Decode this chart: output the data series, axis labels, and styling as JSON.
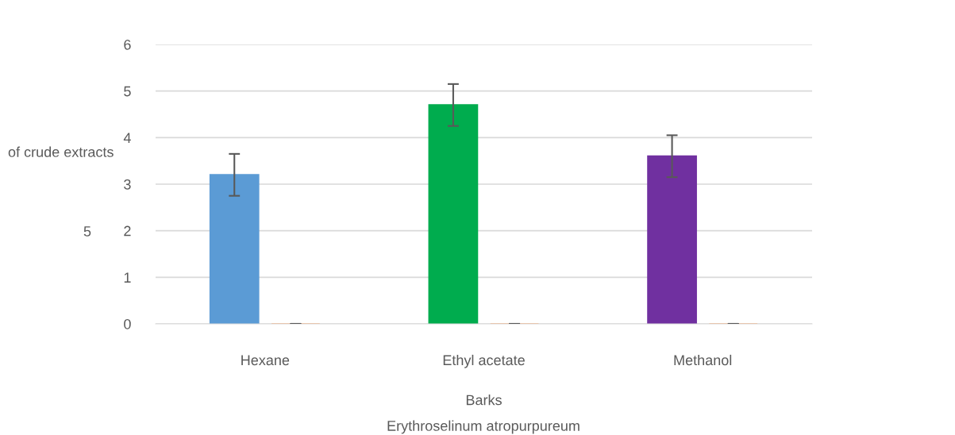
{
  "chart_data": {
    "type": "bar",
    "ylabel": "of crude extracts",
    "xlabel": "Barks",
    "categories": [
      "Hexane",
      "Ethyl acetate",
      "Methanol"
    ],
    "series": [
      {
        "colors": [
          "#5b9bd5",
          "#00ac4e",
          "#7030a0"
        ],
        "values": [
          3.2,
          4.7,
          3.6
        ],
        "errors": [
          0.45,
          0.45,
          0.45
        ]
      },
      {
        "color": "#f4b183",
        "values": [
          0,
          0,
          0
        ],
        "errors": [
          0,
          0,
          0
        ]
      }
    ],
    "ylim": [
      0,
      6
    ],
    "yticks": [
      0,
      1,
      2,
      3,
      4,
      5,
      6
    ],
    "grid": "y",
    "legend": false,
    "annotations": [
      "5",
      "Erythroselinum atropurpureum"
    ]
  }
}
